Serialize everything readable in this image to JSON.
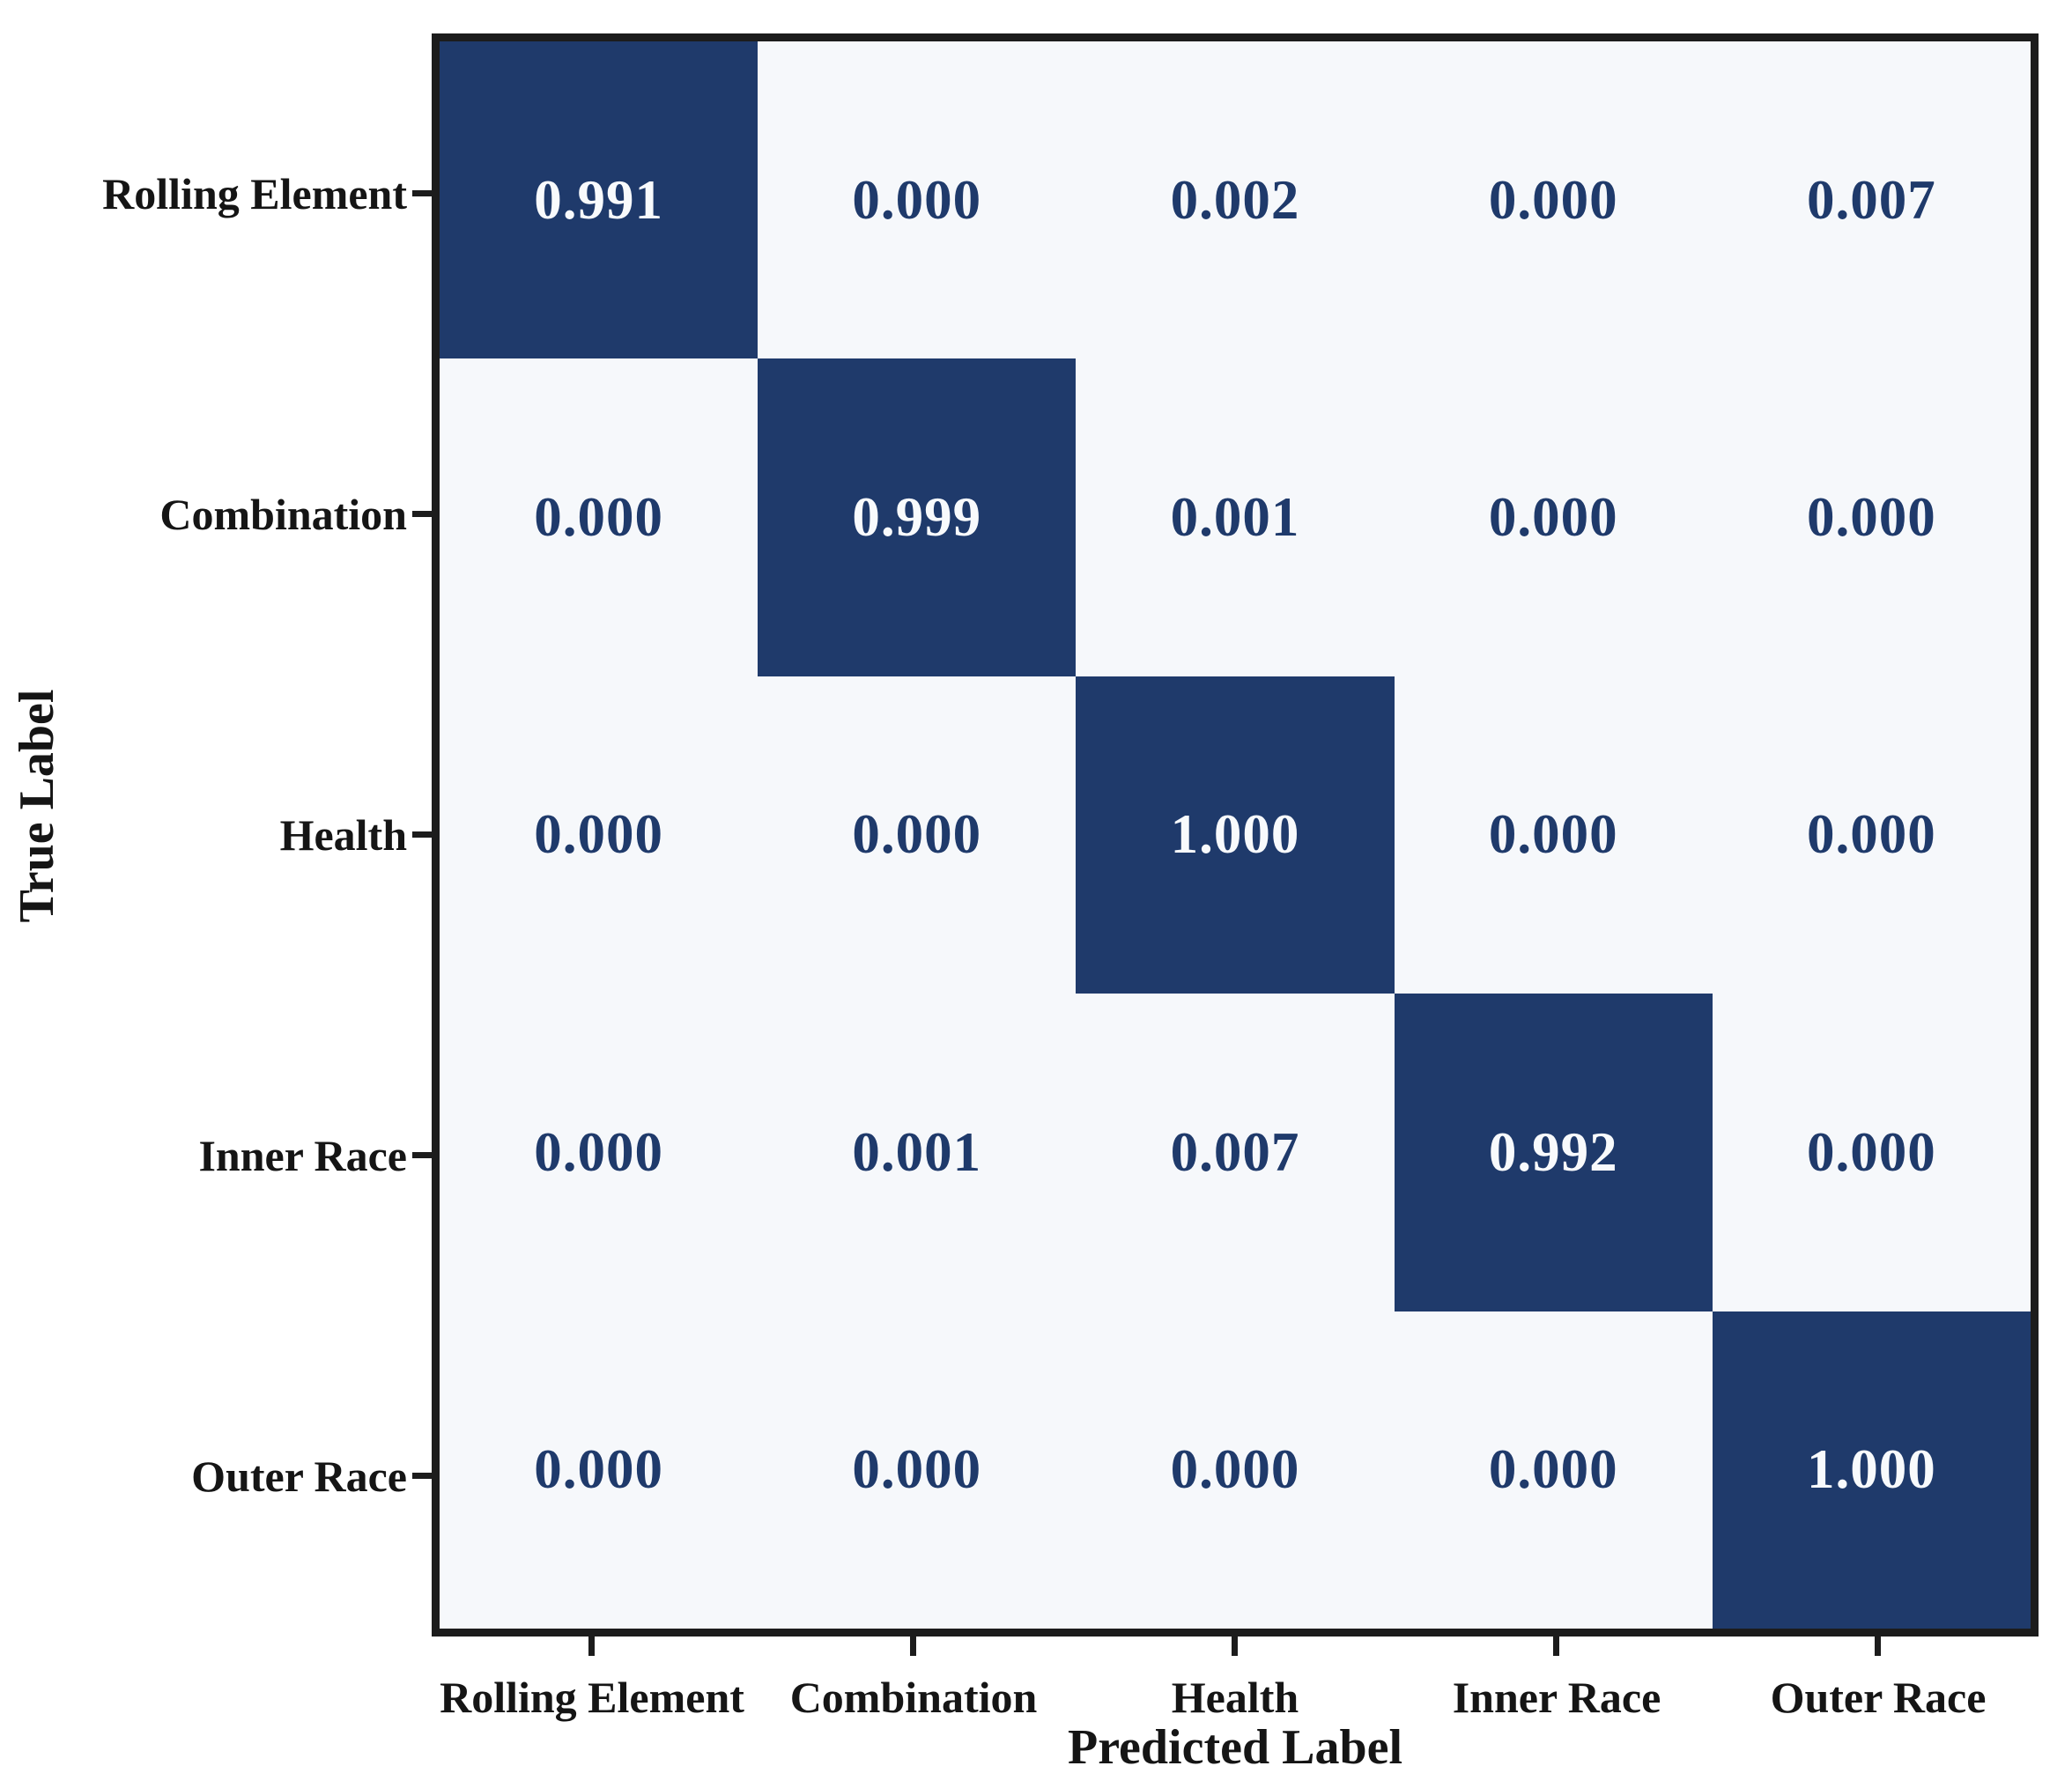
{
  "chart_data": {
    "type": "heatmap",
    "title": "",
    "xlabel": "Predicted Label",
    "ylabel": "True Label",
    "x_categories": [
      "Rolling Element",
      "Combination",
      "Health",
      "Inner Race",
      "Outer Race"
    ],
    "y_categories": [
      "Rolling Element",
      "Combination",
      "Health",
      "Inner Race",
      "Outer Race"
    ],
    "matrix": [
      [
        0.991,
        0.0,
        0.002,
        0.0,
        0.007
      ],
      [
        0.0,
        0.999,
        0.001,
        0.0,
        0.0
      ],
      [
        0.0,
        0.0,
        1.0,
        0.0,
        0.0
      ],
      [
        0.0,
        0.001,
        0.007,
        0.992,
        0.0
      ],
      [
        0.0,
        0.0,
        0.0,
        0.0,
        1.0
      ]
    ],
    "cell_labels": [
      [
        "0.991",
        "0.000",
        "0.002",
        "0.000",
        "0.007"
      ],
      [
        "0.000",
        "0.999",
        "0.001",
        "0.000",
        "0.000"
      ],
      [
        "0.000",
        "0.000",
        "1.000",
        "0.000",
        "0.000"
      ],
      [
        "0.000",
        "0.001",
        "0.007",
        "0.992",
        "0.000"
      ],
      [
        "0.000",
        "0.000",
        "0.000",
        "0.000",
        "1.000"
      ]
    ],
    "value_range": [
      0,
      1
    ],
    "grid": false,
    "legend": "none",
    "colors": {
      "cell_high": "#1f3a6b",
      "cell_low": "#f6f8fb",
      "text_on_high": "#f8fafc",
      "text_on_low": "#1f3a6b",
      "spine": "#1c1c1c",
      "label_text": "#151515"
    }
  }
}
